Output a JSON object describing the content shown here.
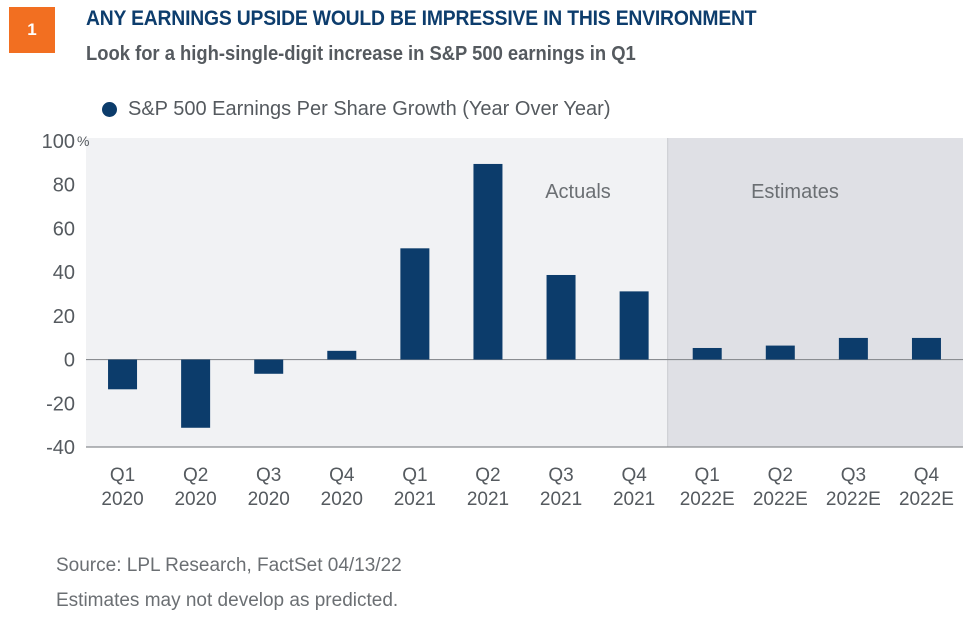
{
  "badge": "1",
  "header": {
    "title": "ANY EARNINGS UPSIDE WOULD BE IMPRESSIVE IN THIS ENVIRONMENT",
    "subtitle": "Look for a high-single-digit increase in S&P 500 earnings in Q1"
  },
  "colors": {
    "bar": "#0c3c6b",
    "title": "#0d3d6d",
    "badge": "#f26f21",
    "actuals_bg": "#f1f2f4",
    "estimates_bg": "#dfe0e5",
    "axis": "#8a8d91",
    "text": "#555a5f"
  },
  "chart_data": {
    "type": "bar",
    "title": "ANY EARNINGS UPSIDE WOULD BE IMPRESSIVE IN THIS ENVIRONMENT",
    "subtitle": "Look for a high-single-digit increase in S&P 500 earnings in Q1",
    "categories": [
      [
        "Q1",
        "2020"
      ],
      [
        "Q2",
        "2020"
      ],
      [
        "Q3",
        "2020"
      ],
      [
        "Q4",
        "2020"
      ],
      [
        "Q1",
        "2021"
      ],
      [
        "Q2",
        "2021"
      ],
      [
        "Q3",
        "2021"
      ],
      [
        "Q4",
        "2021"
      ],
      [
        "Q1",
        "2022E"
      ],
      [
        "Q2",
        "2022E"
      ],
      [
        "Q3",
        "2022E"
      ],
      [
        "Q4",
        "2022E"
      ]
    ],
    "series": [
      {
        "name": "S&P 500 Earnings Per Share Growth (Year Over Year)",
        "values": [
          -13.6,
          -31.2,
          -6.5,
          4.0,
          50.9,
          89.5,
          38.7,
          31.2,
          5.3,
          6.4,
          9.9,
          9.9
        ]
      }
    ],
    "xlabel": "",
    "ylabel": "",
    "ylim": [
      -40,
      100
    ],
    "yticks": [
      100,
      80,
      60,
      40,
      20,
      0,
      -20,
      -40
    ],
    "ytick_labels": [
      "100",
      "80",
      "60",
      "40",
      "20",
      "0",
      "-20",
      "-40"
    ],
    "y_unit": "%",
    "grid": false,
    "legend": {
      "position": "top-left",
      "entries": [
        "S&P 500 Earnings Per Share Growth (Year Over Year)"
      ]
    },
    "regions": [
      {
        "label": "Actuals",
        "from_category": 0,
        "to_category": 7
      },
      {
        "label": "Estimates",
        "from_category": 8,
        "to_category": 11
      }
    ]
  },
  "footer": {
    "source": "Source: LPL Research, FactSet  04/13/22",
    "note": "Estimates may not develop as predicted."
  }
}
